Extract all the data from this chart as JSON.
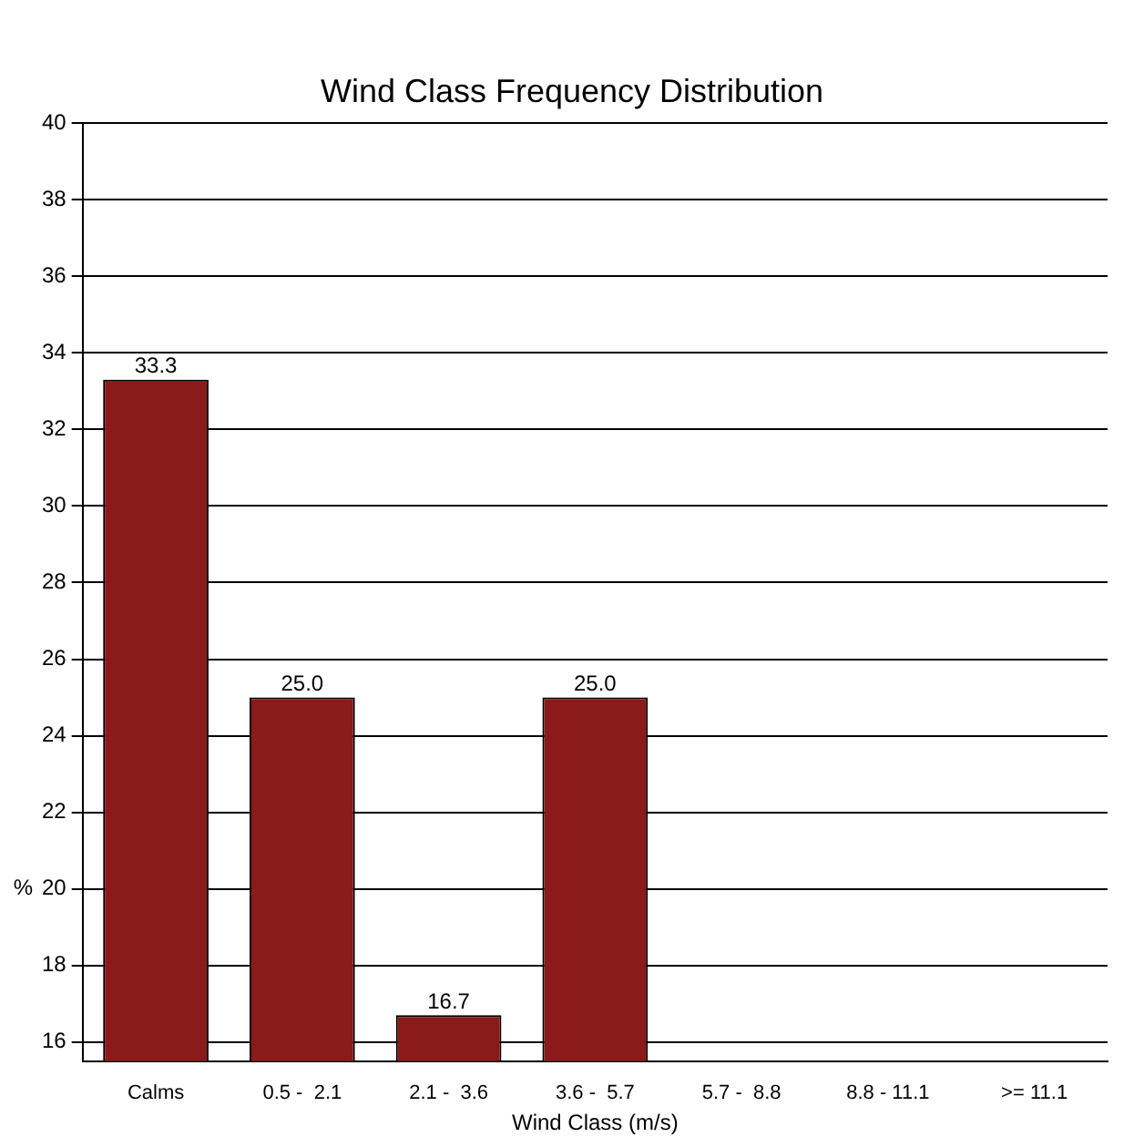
{
  "chart_data": {
    "type": "bar",
    "title": "Wind Class Frequency Distribution",
    "xlabel": "Wind Class (m/s)",
    "ylabel": "%",
    "categories": [
      "Calms",
      "0.5 -  2.1",
      "2.1 -  3.6",
      "3.6 -  5.7",
      "5.7 -  8.8",
      "8.8 - 11.1",
      ">= 11.1"
    ],
    "values": [
      33.3,
      25.0,
      16.7,
      25.0,
      null,
      null,
      null
    ],
    "value_labels": [
      "33.3",
      "25.0",
      "16.7",
      "25.0",
      null,
      null,
      null
    ],
    "color": "#8b1a1a",
    "ylim": [
      15.5,
      40
    ],
    "yticks": [
      16,
      18,
      20,
      22,
      24,
      26,
      28,
      30,
      32,
      34,
      36,
      38,
      40
    ],
    "grid": "y",
    "legend": false
  }
}
